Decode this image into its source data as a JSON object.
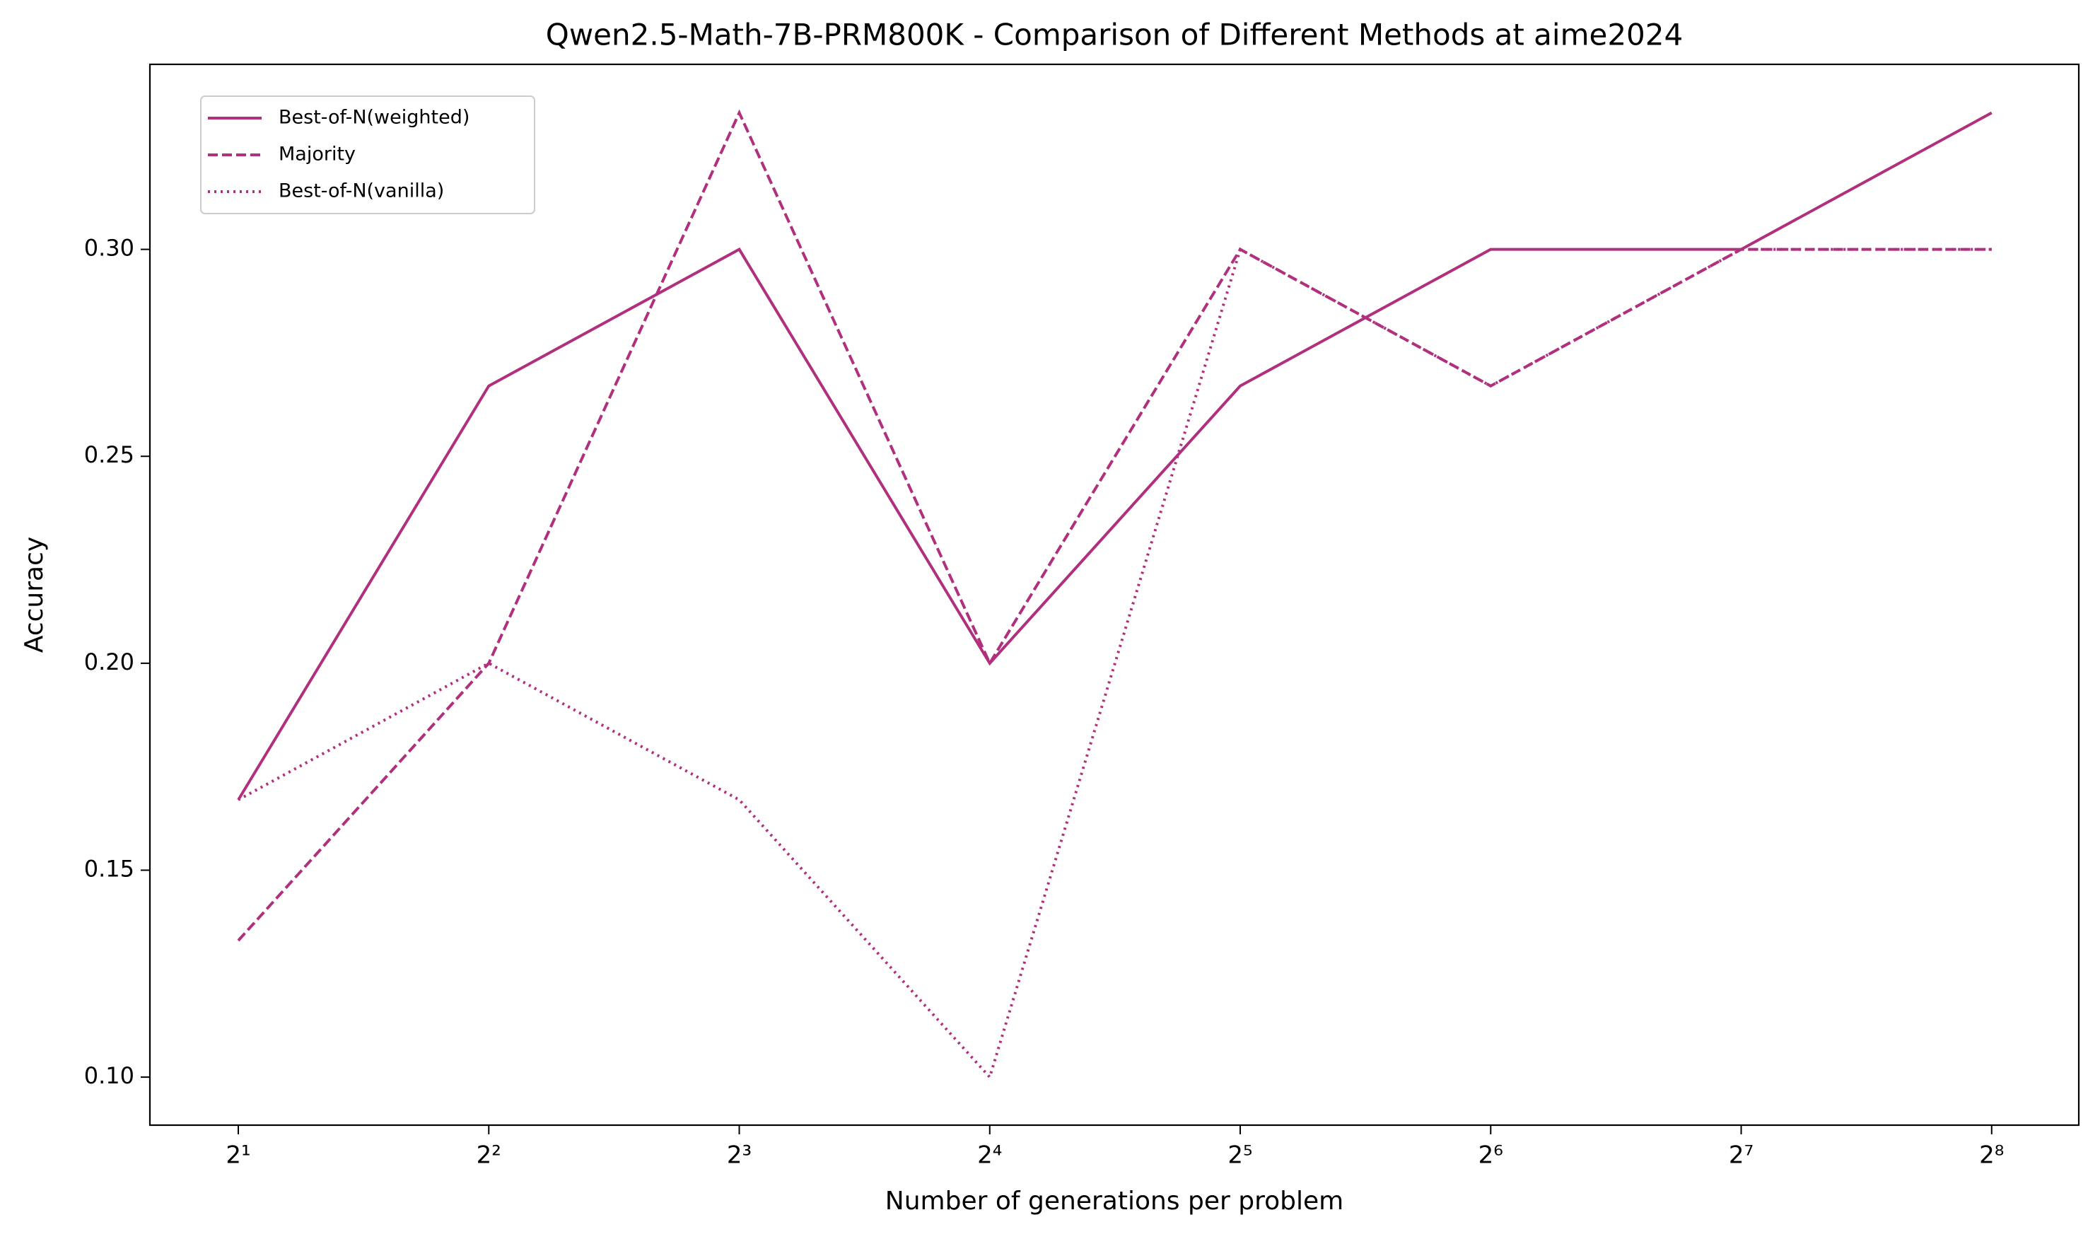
{
  "chart_data": {
    "type": "line",
    "title": "Qwen2.5-Math-7B-PRM800K - Comparison of Different Methods at aime2024",
    "xlabel": "Number of generations per problem",
    "ylabel": "Accuracy",
    "x": [
      2,
      4,
      8,
      16,
      32,
      64,
      128,
      256
    ],
    "xscale": "log",
    "xlim": [
      1.566,
      325.8
    ],
    "xticks": [
      {
        "value": 2,
        "label": "2¹"
      },
      {
        "value": 4,
        "label": "2²"
      },
      {
        "value": 8,
        "label": "2³"
      },
      {
        "value": 16,
        "label": "2⁴"
      },
      {
        "value": 32,
        "label": "2⁵"
      },
      {
        "value": 64,
        "label": "2⁶"
      },
      {
        "value": 128,
        "label": "2⁷"
      },
      {
        "value": 256,
        "label": "2⁸"
      }
    ],
    "ylim": [
      0.0884,
      0.3447
    ],
    "yticks": [
      {
        "value": 0.1,
        "label": "0.10"
      },
      {
        "value": 0.15,
        "label": "0.15"
      },
      {
        "value": 0.2,
        "label": "0.20"
      },
      {
        "value": 0.25,
        "label": "0.25"
      },
      {
        "value": 0.3,
        "label": "0.30"
      }
    ],
    "grid": false,
    "legend": "upper left",
    "series": [
      {
        "name": "Best-of-N(weighted)",
        "color": "#b0307e",
        "linestyle": "solid",
        "values": [
          0.167,
          0.267,
          0.3,
          0.2,
          0.267,
          0.3,
          0.3,
          0.333
        ]
      },
      {
        "name": "Majority",
        "color": "#b0307e",
        "linestyle": "dashed",
        "values": [
          0.133,
          0.2,
          0.333,
          0.2,
          0.3,
          0.267,
          0.3,
          0.3
        ]
      },
      {
        "name": "Best-of-N(vanilla)",
        "color": "#b0307e",
        "linestyle": "dotted",
        "values": [
          0.167,
          0.2,
          0.167,
          0.1,
          0.3,
          0.267,
          0.3,
          0.3
        ]
      }
    ]
  }
}
